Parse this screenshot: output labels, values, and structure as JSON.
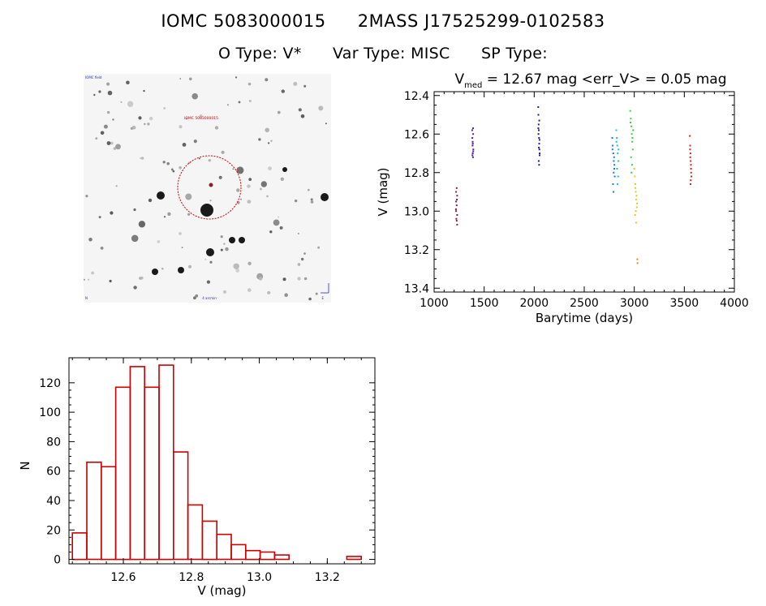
{
  "header": {
    "object_id": "IOMC 5083000015",
    "mass_id": "2MASS J17525299-0102583",
    "otype": "O Type: V*",
    "vartype": "Var Type: MISC",
    "sptype": "SP Type:"
  },
  "skymap": {
    "target_label": "IOMC 5083000015",
    "corner_top_left": "IOMC field",
    "corner_bottom_left": "N",
    "corner_bottom_center": "4 arcmin",
    "corner_bottom_right": "E",
    "colors": {
      "circle": "#cc0000",
      "stars": "#1a1a1a",
      "background": "#f5f5f5"
    }
  },
  "chart_data": [
    {
      "type": "scatter",
      "title": "V_med = 12.67 mag <err_V> = 0.05 mag",
      "title_parts": {
        "v": "V",
        "sub": "med",
        "rest": " = 12.67 mag <err_V> = 0.05 mag"
      },
      "xlabel": "Barytime (days)",
      "ylabel": "V (mag)",
      "xlim": [
        1000,
        4000
      ],
      "ylim": [
        13.42,
        12.38
      ],
      "y_inverted": true,
      "xticks": [
        1000,
        1500,
        2000,
        2500,
        3000,
        3500,
        4000
      ],
      "yticks": [
        12.4,
        12.6,
        12.8,
        13.0,
        13.2,
        13.4
      ],
      "ytick_labels": [
        "12.4",
        "12.6",
        "12.8",
        "13.0",
        "13.2",
        "13.4"
      ],
      "series": [
        {
          "color": "#7a1f4a",
          "x": [
            1220,
            1220,
            1220,
            1225,
            1225,
            1225,
            1230,
            1230,
            1230,
            1218,
            1222,
            1228
          ],
          "y": [
            12.9,
            12.95,
            13.0,
            12.88,
            12.97,
            13.05,
            12.92,
            13.02,
            13.07,
            12.99,
            13.04,
            12.94
          ]
        },
        {
          "color": "#5a1aa8",
          "x": [
            1380,
            1382,
            1384,
            1386,
            1388,
            1390,
            1392,
            1385,
            1389,
            1383,
            1387,
            1391
          ],
          "y": [
            12.58,
            12.62,
            12.66,
            12.7,
            12.72,
            12.6,
            12.68,
            12.64,
            12.57,
            12.71,
            12.65,
            12.69
          ]
        },
        {
          "color": "#1a1aa0",
          "x": [
            2040,
            2042,
            2044,
            2046,
            2048,
            2050,
            2052,
            2054,
            2045,
            2049,
            2043,
            2051,
            2047,
            2053,
            2041,
            2055
          ],
          "y": [
            12.46,
            12.5,
            12.55,
            12.58,
            12.62,
            12.65,
            12.68,
            12.71,
            12.74,
            12.76,
            12.6,
            12.53,
            12.67,
            12.63,
            12.57,
            12.7
          ]
        },
        {
          "color": "#1c7ad8",
          "x": [
            2780,
            2785,
            2790,
            2795,
            2800,
            2805,
            2788,
            2798,
            2792,
            2782,
            2802,
            2794
          ],
          "y": [
            12.62,
            12.66,
            12.7,
            12.74,
            12.78,
            12.82,
            12.86,
            12.72,
            12.9,
            12.68,
            12.76,
            12.8
          ]
        },
        {
          "color": "#18c4d8",
          "x": [
            2820,
            2825,
            2830,
            2835,
            2840,
            2828,
            2838,
            2822,
            2833,
            2843
          ],
          "y": [
            12.58,
            12.62,
            12.66,
            12.7,
            12.74,
            12.78,
            12.82,
            12.64,
            12.86,
            12.68
          ]
        },
        {
          "color": "#3cd04a",
          "x": [
            2960,
            2965,
            2970,
            2975,
            2980,
            2985,
            2968,
            2978,
            2972,
            2962,
            2982,
            2988
          ],
          "y": [
            12.48,
            12.52,
            12.56,
            12.6,
            12.64,
            12.68,
            12.72,
            12.76,
            12.8,
            12.54,
            12.62,
            12.58
          ]
        },
        {
          "color": "#e8c81a",
          "x": [
            3000,
            3005,
            3010,
            3015,
            3020,
            3025,
            3008,
            3018,
            3012,
            3022,
            3028,
            3016
          ],
          "y": [
            12.78,
            12.82,
            12.86,
            12.9,
            12.94,
            12.98,
            13.02,
            13.06,
            12.88,
            12.92,
            12.96,
            13.0
          ]
        },
        {
          "color": "#e08a1a",
          "x": [
            3030,
            3032
          ],
          "y": [
            13.25,
            13.27
          ]
        },
        {
          "color": "#d8261a",
          "x": [
            3555,
            3558,
            3561,
            3564,
            3567,
            3570,
            3562,
            3566,
            3560,
            3568,
            3557,
            3565
          ],
          "y": [
            12.61,
            12.66,
            12.7,
            12.74,
            12.78,
            12.82,
            12.86,
            12.76,
            12.72,
            12.8,
            12.68,
            12.84
          ]
        }
      ]
    },
    {
      "type": "bar",
      "xlabel": "V (mag)",
      "ylabel": "N",
      "xlim": [
        12.44,
        13.34
      ],
      "ylim": [
        -3,
        137
      ],
      "xticks": [
        12.6,
        12.8,
        13.0,
        13.2
      ],
      "xtick_labels": [
        "12.6",
        "12.8",
        "13.0",
        "13.2"
      ],
      "yticks": [
        0,
        20,
        40,
        60,
        80,
        100,
        120
      ],
      "ytick_labels": [
        "0",
        "20",
        "40",
        "60",
        "80",
        "100",
        "120"
      ],
      "bar_color": "#cc0000",
      "bin_start": 12.45,
      "bin_width": 0.0425,
      "values": [
        18,
        66,
        63,
        117,
        131,
        117,
        132,
        73,
        37,
        26,
        17,
        10,
        6,
        5,
        3,
        0,
        0,
        0,
        0,
        2
      ]
    }
  ]
}
